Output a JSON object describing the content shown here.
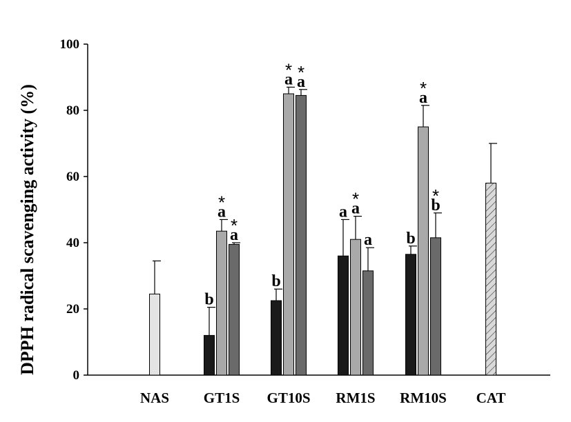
{
  "chart_data": {
    "type": "bar",
    "ylabel": "DPPH radical scavenging activity (%)",
    "xlabel": "",
    "ylim": [
      0,
      100
    ],
    "yticks": [
      0,
      20,
      40,
      60,
      80,
      100
    ],
    "grid": false,
    "legend": "none",
    "categories": [
      "NAS",
      "GT1S",
      "GT10S",
      "RM1S",
      "RM10S",
      "CAT"
    ],
    "groups": [
      {
        "category": "NAS",
        "bars": [
          {
            "value": 24.5,
            "error": 10,
            "fill": "#e4e4e4",
            "pattern": "solid",
            "letter": "",
            "star": ""
          }
        ]
      },
      {
        "category": "GT1S",
        "bars": [
          {
            "value": 12,
            "error": 8.5,
            "fill": "#1a1a1a",
            "pattern": "solid",
            "letter": "b",
            "star": ""
          },
          {
            "value": 43.5,
            "error": 3.5,
            "fill": "#a9a9a9",
            "pattern": "solid",
            "letter": "a",
            "star": "*"
          },
          {
            "value": 39.5,
            "error": 0.5,
            "fill": "#6a6a6a",
            "pattern": "solid",
            "letter": "a",
            "star": "*"
          }
        ]
      },
      {
        "category": "GT10S",
        "bars": [
          {
            "value": 22.5,
            "error": 3.5,
            "fill": "#1a1a1a",
            "pattern": "solid",
            "letter": "b",
            "star": ""
          },
          {
            "value": 85,
            "error": 2,
            "fill": "#a9a9a9",
            "pattern": "solid",
            "letter": "a",
            "star": "*"
          },
          {
            "value": 84.5,
            "error": 1.8,
            "fill": "#6a6a6a",
            "pattern": "solid",
            "letter": "a",
            "star": "*"
          }
        ]
      },
      {
        "category": "RM1S",
        "bars": [
          {
            "value": 36,
            "error": 11,
            "fill": "#1a1a1a",
            "pattern": "solid",
            "letter": "a",
            "star": ""
          },
          {
            "value": 41,
            "error": 7,
            "fill": "#a9a9a9",
            "pattern": "solid",
            "letter": "a",
            "star": "*"
          },
          {
            "value": 31.5,
            "error": 7,
            "fill": "#6a6a6a",
            "pattern": "solid",
            "letter": "a",
            "star": ""
          }
        ]
      },
      {
        "category": "RM10S",
        "bars": [
          {
            "value": 36.5,
            "error": 2.5,
            "fill": "#1a1a1a",
            "pattern": "solid",
            "letter": "b",
            "star": ""
          },
          {
            "value": 75,
            "error": 6.5,
            "fill": "#a9a9a9",
            "pattern": "solid",
            "letter": "a",
            "star": "*"
          },
          {
            "value": 41.5,
            "error": 7.5,
            "fill": "#6a6a6a",
            "pattern": "solid",
            "letter": "b",
            "star": "*"
          }
        ]
      },
      {
        "category": "CAT",
        "bars": [
          {
            "value": 58,
            "error": 12,
            "fill": "#d0d0d0",
            "pattern": "hatched",
            "letter": "",
            "star": ""
          }
        ]
      }
    ]
  }
}
